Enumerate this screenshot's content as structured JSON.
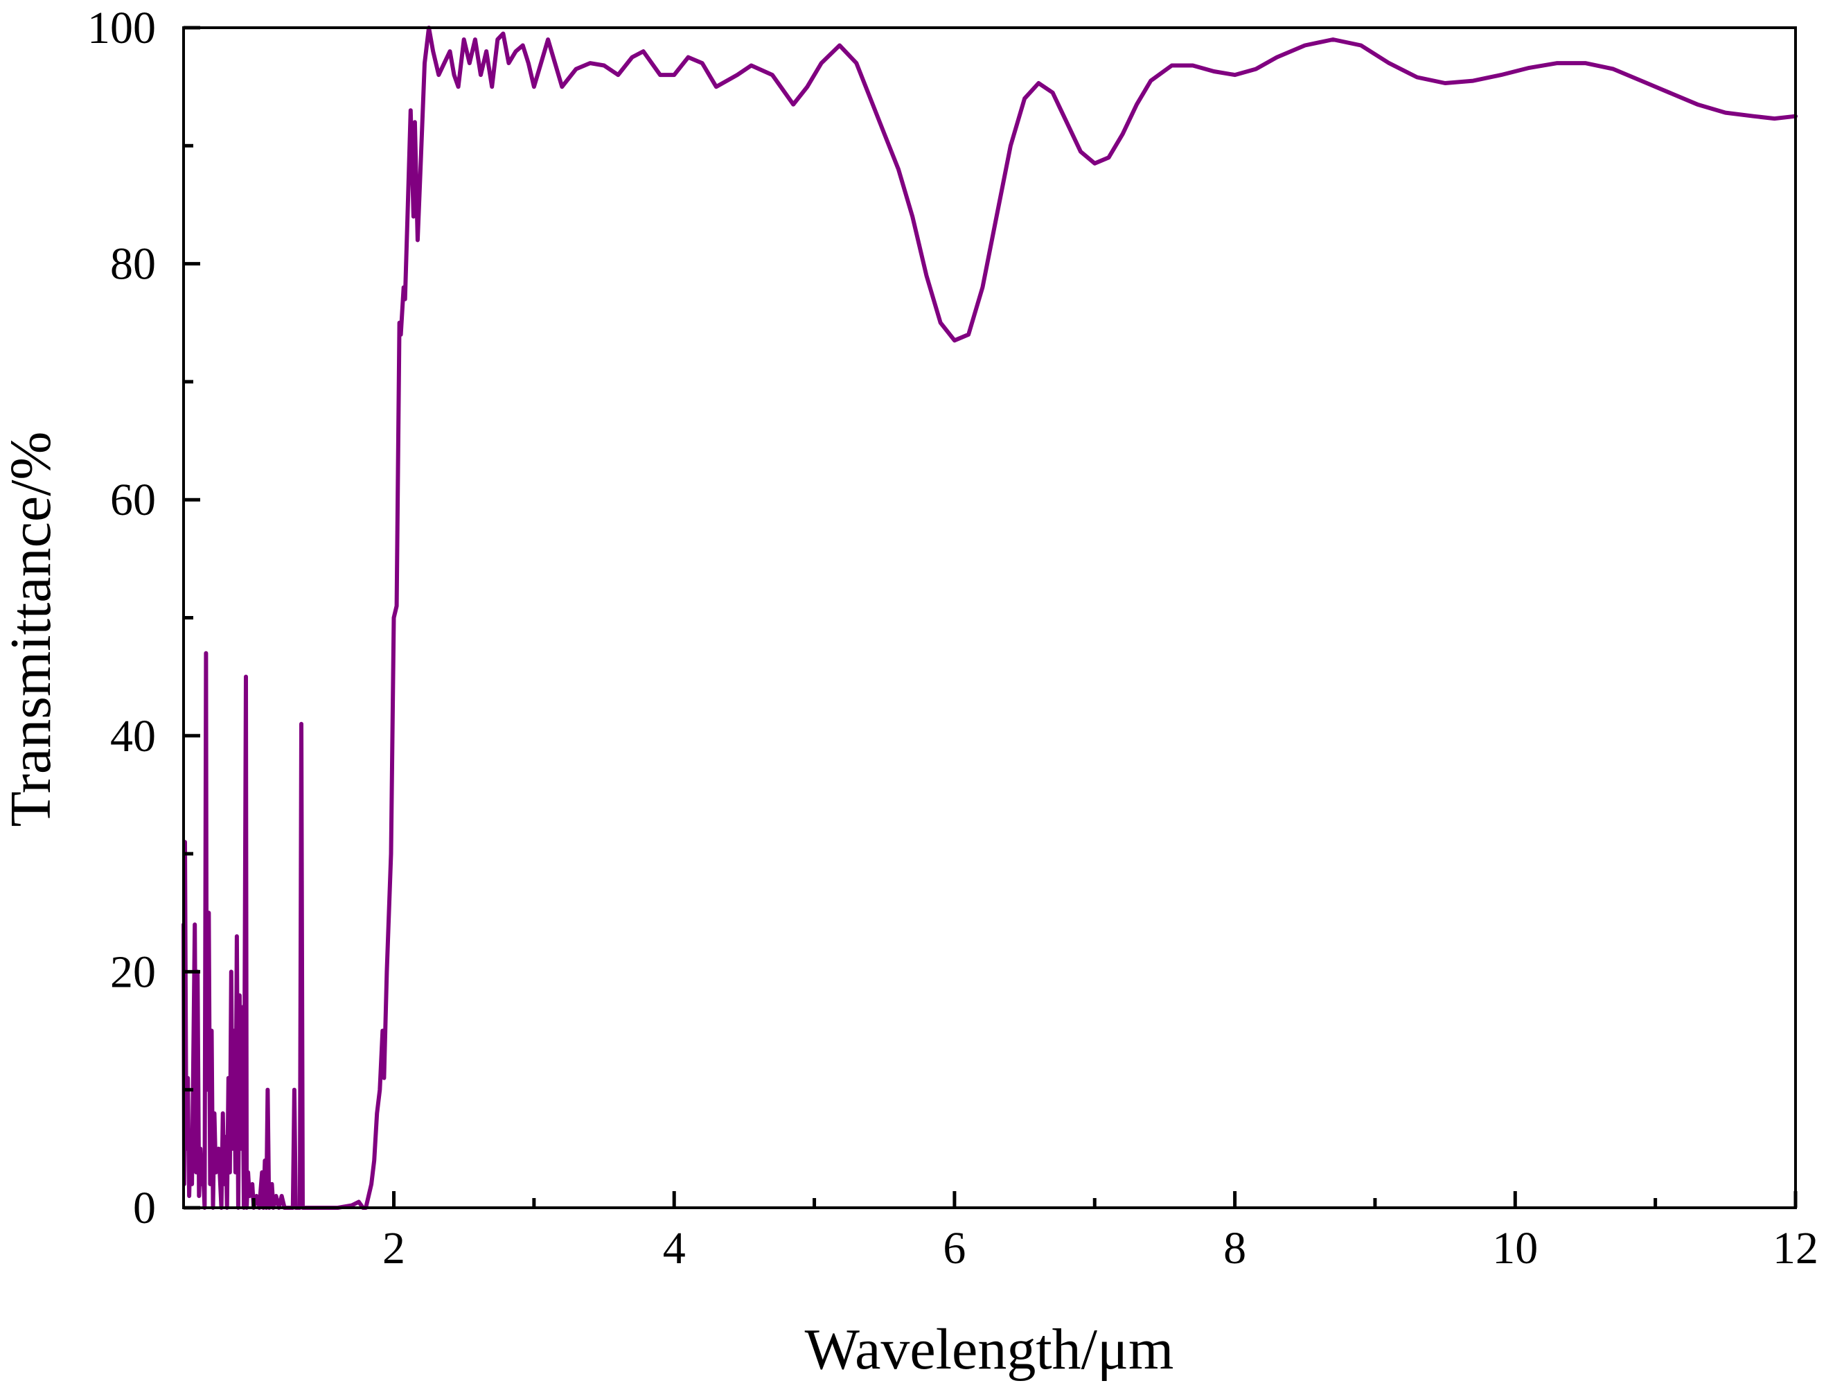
{
  "chart_data": {
    "type": "line",
    "title": "",
    "xlabel": "Wavelength/μm",
    "ylabel": "Transmittance/%",
    "xlim": [
      0.5,
      12
    ],
    "ylim": [
      0,
      100
    ],
    "x_major_ticks": [
      2,
      4,
      6,
      8,
      10,
      12
    ],
    "x_tick_labels": [
      "2",
      "4",
      "6",
      "8",
      "10",
      "12"
    ],
    "x_minor_ticks": [
      1,
      3,
      5,
      7,
      9,
      11
    ],
    "y_major_ticks": [
      0,
      20,
      40,
      60,
      80,
      100
    ],
    "y_tick_labels": [
      "0",
      "20",
      "40",
      "60",
      "80",
      "100"
    ],
    "y_minor_ticks": [
      10,
      30,
      50,
      70,
      90
    ],
    "grid": false,
    "legend": "none",
    "series": [
      {
        "name": "Transmittance",
        "color": "#800080",
        "points": [
          [
            0.5,
            24
          ],
          [
            0.505,
            2
          ],
          [
            0.51,
            31
          ],
          [
            0.52,
            5
          ],
          [
            0.53,
            11
          ],
          [
            0.54,
            1
          ],
          [
            0.55,
            6
          ],
          [
            0.56,
            2
          ],
          [
            0.58,
            24
          ],
          [
            0.59,
            3
          ],
          [
            0.6,
            20
          ],
          [
            0.61,
            1
          ],
          [
            0.62,
            5
          ],
          [
            0.63,
            2
          ],
          [
            0.64,
            3
          ],
          [
            0.65,
            0
          ],
          [
            0.66,
            47
          ],
          [
            0.665,
            10
          ],
          [
            0.67,
            18
          ],
          [
            0.68,
            25
          ],
          [
            0.69,
            2
          ],
          [
            0.7,
            15
          ],
          [
            0.71,
            0
          ],
          [
            0.72,
            8
          ],
          [
            0.73,
            3
          ],
          [
            0.75,
            5
          ],
          [
            0.77,
            0
          ],
          [
            0.78,
            8
          ],
          [
            0.79,
            2
          ],
          [
            0.8,
            6
          ],
          [
            0.81,
            0
          ],
          [
            0.82,
            11
          ],
          [
            0.83,
            3
          ],
          [
            0.84,
            20
          ],
          [
            0.85,
            5
          ],
          [
            0.86,
            15
          ],
          [
            0.87,
            3
          ],
          [
            0.88,
            23
          ],
          [
            0.89,
            0
          ],
          [
            0.9,
            18
          ],
          [
            0.91,
            5
          ],
          [
            0.92,
            17
          ],
          [
            0.93,
            0
          ],
          [
            0.945,
            45
          ],
          [
            0.95,
            0
          ],
          [
            0.96,
            3
          ],
          [
            0.97,
            1
          ],
          [
            0.99,
            2
          ],
          [
            1.0,
            0
          ],
          [
            1.02,
            1
          ],
          [
            1.04,
            0
          ],
          [
            1.06,
            3
          ],
          [
            1.07,
            0
          ],
          [
            1.08,
            4
          ],
          [
            1.09,
            0
          ],
          [
            1.1,
            10
          ],
          [
            1.11,
            0
          ],
          [
            1.13,
            2
          ],
          [
            1.14,
            0
          ],
          [
            1.16,
            1
          ],
          [
            1.18,
            0
          ],
          [
            1.2,
            1
          ],
          [
            1.22,
            0
          ],
          [
            1.28,
            0
          ],
          [
            1.29,
            10
          ],
          [
            1.3,
            0
          ],
          [
            1.33,
            0
          ],
          [
            1.34,
            41
          ],
          [
            1.35,
            0
          ],
          [
            1.4,
            0
          ],
          [
            1.6,
            0
          ],
          [
            1.7,
            0.2
          ],
          [
            1.75,
            0.5
          ],
          [
            1.78,
            0
          ],
          [
            1.8,
            0
          ],
          [
            1.84,
            2
          ],
          [
            1.86,
            4
          ],
          [
            1.88,
            8
          ],
          [
            1.9,
            10
          ],
          [
            1.92,
            15
          ],
          [
            1.93,
            11
          ],
          [
            1.95,
            20
          ],
          [
            1.98,
            30
          ],
          [
            2.0,
            50
          ],
          [
            2.02,
            51
          ],
          [
            2.04,
            75
          ],
          [
            2.05,
            74
          ],
          [
            2.07,
            78
          ],
          [
            2.08,
            77
          ],
          [
            2.1,
            85
          ],
          [
            2.12,
            93
          ],
          [
            2.14,
            84
          ],
          [
            2.15,
            92
          ],
          [
            2.17,
            82
          ],
          [
            2.19,
            88
          ],
          [
            2.22,
            97
          ],
          [
            2.25,
            100
          ],
          [
            2.28,
            98
          ],
          [
            2.32,
            96
          ],
          [
            2.36,
            97
          ],
          [
            2.4,
            98
          ],
          [
            2.43,
            96
          ],
          [
            2.46,
            95
          ],
          [
            2.5,
            99
          ],
          [
            2.54,
            97
          ],
          [
            2.58,
            99
          ],
          [
            2.62,
            96
          ],
          [
            2.66,
            98
          ],
          [
            2.7,
            95
          ],
          [
            2.74,
            99
          ],
          [
            2.78,
            99.5
          ],
          [
            2.82,
            97
          ],
          [
            2.87,
            98
          ],
          [
            2.92,
            98.5
          ],
          [
            2.96,
            97
          ],
          [
            3.0,
            95
          ],
          [
            3.05,
            97
          ],
          [
            3.1,
            99
          ],
          [
            3.15,
            97
          ],
          [
            3.2,
            95
          ],
          [
            3.3,
            96.5
          ],
          [
            3.4,
            97
          ],
          [
            3.5,
            96.8
          ],
          [
            3.6,
            96
          ],
          [
            3.7,
            97.5
          ],
          [
            3.78,
            98
          ],
          [
            3.9,
            96
          ],
          [
            4.0,
            96
          ],
          [
            4.1,
            97.5
          ],
          [
            4.2,
            97
          ],
          [
            4.3,
            95
          ],
          [
            4.45,
            96
          ],
          [
            4.55,
            96.8
          ],
          [
            4.7,
            96
          ],
          [
            4.85,
            93.5
          ],
          [
            4.95,
            95
          ],
          [
            5.05,
            97
          ],
          [
            5.18,
            98.5
          ],
          [
            5.3,
            97
          ],
          [
            5.4,
            94
          ],
          [
            5.5,
            91
          ],
          [
            5.6,
            88
          ],
          [
            5.7,
            84
          ],
          [
            5.8,
            79
          ],
          [
            5.9,
            75
          ],
          [
            6.0,
            73.5
          ],
          [
            6.1,
            74
          ],
          [
            6.2,
            78
          ],
          [
            6.3,
            84
          ],
          [
            6.4,
            90
          ],
          [
            6.5,
            94
          ],
          [
            6.6,
            95.3
          ],
          [
            6.7,
            94.5
          ],
          [
            6.8,
            92
          ],
          [
            6.9,
            89.5
          ],
          [
            7.0,
            88.5
          ],
          [
            7.1,
            89
          ],
          [
            7.2,
            91
          ],
          [
            7.3,
            93.5
          ],
          [
            7.4,
            95.5
          ],
          [
            7.55,
            96.8
          ],
          [
            7.7,
            96.8
          ],
          [
            7.85,
            96.3
          ],
          [
            8.0,
            96
          ],
          [
            8.15,
            96.5
          ],
          [
            8.3,
            97.5
          ],
          [
            8.5,
            98.5
          ],
          [
            8.7,
            99
          ],
          [
            8.9,
            98.5
          ],
          [
            9.1,
            97
          ],
          [
            9.3,
            95.8
          ],
          [
            9.5,
            95.3
          ],
          [
            9.7,
            95.5
          ],
          [
            9.9,
            96
          ],
          [
            10.1,
            96.6
          ],
          [
            10.3,
            97
          ],
          [
            10.5,
            97
          ],
          [
            10.7,
            96.5
          ],
          [
            10.9,
            95.5
          ],
          [
            11.1,
            94.5
          ],
          [
            11.3,
            93.5
          ],
          [
            11.5,
            92.8
          ],
          [
            11.7,
            92.5
          ],
          [
            11.85,
            92.3
          ],
          [
            12.0,
            92.5
          ]
        ]
      }
    ]
  }
}
